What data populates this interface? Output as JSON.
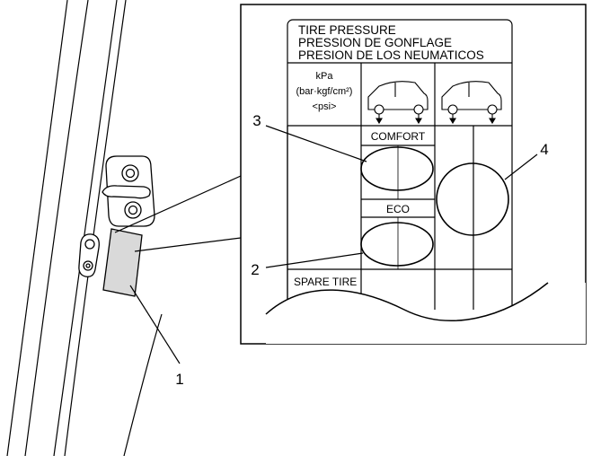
{
  "label": {
    "title_lines": [
      "TIRE PRESSURE",
      "PRESSION DE GONFLAGE",
      "PRESION DE LOS NEUMATICOS"
    ],
    "unit_lines": [
      "kPa",
      "(bar·kgf/cm²)",
      "<psi>"
    ],
    "comfort": "COMFORT",
    "eco": "ECO",
    "spare": "SPARE TIRE"
  },
  "callouts": {
    "c1": "1",
    "c2": "2",
    "c3": "3",
    "c4": "4"
  },
  "colors": {
    "line": "#000000",
    "label_fill": "#d9d9d9"
  }
}
